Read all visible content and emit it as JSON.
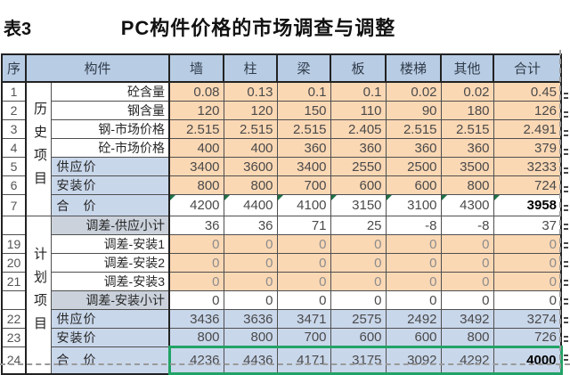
{
  "page": {
    "table_label": "表3",
    "title": "PC构件价格的市场调查与调整"
  },
  "colors": {
    "header_bg": "#b8cce4",
    "history_input_bg": "#fbd8b4",
    "plan_row_bg": "#c9d7eb",
    "subtotal_label_bg": "#cbd2dc",
    "highlight_green": "#21a366",
    "comment_triangle_green": "#1e7145"
  },
  "table": {
    "header": {
      "seq": "序",
      "component": "构件",
      "columns": [
        "墙",
        "柱",
        "梁",
        "板",
        "楼梯",
        "其他",
        "合计"
      ]
    },
    "groups": [
      {
        "label": "历史项目",
        "span": 7
      },
      {
        "label": "计划项目",
        "span": 8
      }
    ],
    "rows": [
      {
        "seq": "1",
        "kind": "qty",
        "label": "砼含量",
        "values": [
          "0.08",
          "0.13",
          "0.1",
          "0.1",
          "0.02",
          "0.02",
          "0.45"
        ]
      },
      {
        "seq": "2",
        "kind": "qty",
        "label": "钢含量",
        "values": [
          "120",
          "120",
          "150",
          "110",
          "90",
          "180",
          "126"
        ]
      },
      {
        "seq": "3",
        "kind": "qty",
        "label": "钢-市场价格",
        "values": [
          "2.515",
          "2.515",
          "2.515",
          "2.405",
          "2.515",
          "2.515",
          "2.491"
        ]
      },
      {
        "seq": "4",
        "kind": "qty",
        "label": "砼-市场价格",
        "values": [
          "400",
          "400",
          "360",
          "360",
          "360",
          "360",
          "379"
        ]
      },
      {
        "seq": "5",
        "kind": "hist-price",
        "label": "供应价",
        "values": [
          "3400",
          "3600",
          "3400",
          "2550",
          "2500",
          "3500",
          "3233"
        ]
      },
      {
        "seq": "6",
        "kind": "hist-price",
        "label": "安装价",
        "values": [
          "800",
          "800",
          "700",
          "600",
          "600",
          "800",
          "724"
        ]
      },
      {
        "seq": "7",
        "kind": "hist-total",
        "label": "合　价",
        "values": [
          "4200",
          "4400",
          "4100",
          "3150",
          "3100",
          "4300",
          "3958"
        ]
      },
      {
        "seq": "",
        "kind": "subtotal",
        "label": "调差-供应小计",
        "values": [
          "36",
          "36",
          "71",
          "25",
          "-8",
          "-8",
          "37"
        ]
      },
      {
        "seq": "19",
        "kind": "adjust",
        "label": "调差-安装1",
        "values": [
          "0",
          "0",
          "0",
          "0",
          "0",
          "0",
          "0"
        ]
      },
      {
        "seq": "20",
        "kind": "adjust",
        "label": "调差-安装2",
        "values": [
          "0",
          "0",
          "0",
          "0",
          "0",
          "0",
          "0"
        ]
      },
      {
        "seq": "21",
        "kind": "adjust",
        "label": "调差-安装3",
        "values": [
          "0",
          "0",
          "0",
          "0",
          "0",
          "0",
          "0"
        ]
      },
      {
        "seq": "",
        "kind": "subtotal",
        "label": "调差-安装小计",
        "values": [
          "0",
          "0",
          "0",
          "0",
          "0",
          "0",
          "0"
        ]
      },
      {
        "seq": "22",
        "kind": "plan-price",
        "label": "供应价",
        "values": [
          "3436",
          "3636",
          "3471",
          "2575",
          "2492",
          "3492",
          "3274"
        ]
      },
      {
        "seq": "23",
        "kind": "plan-price",
        "label": "安装价",
        "values": [
          "800",
          "800",
          "700",
          "600",
          "600",
          "800",
          "726"
        ]
      },
      {
        "seq": "24",
        "kind": "plan-total",
        "label": "合　价",
        "values": [
          "4236",
          "4436",
          "4171",
          "3175",
          "3092",
          "4292",
          "4000"
        ]
      }
    ]
  }
}
